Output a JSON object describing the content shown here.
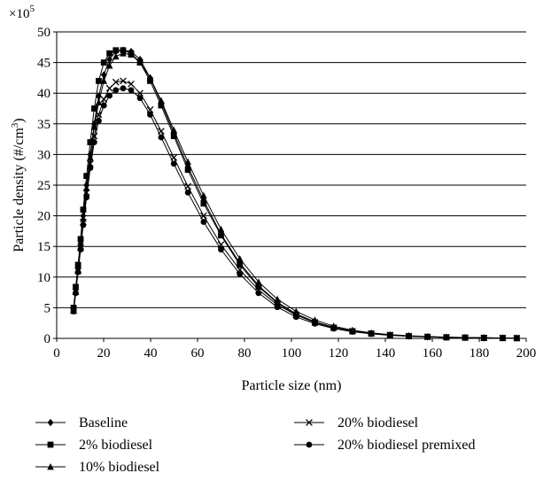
{
  "chart_data": {
    "type": "line",
    "title": "",
    "xlabel": "Particle size (nm)",
    "ylabel_main": "Particle density (#/cm",
    "ylabel_sup": "3",
    "ylabel_close": ")",
    "y_multiplier_base": "×10",
    "y_multiplier_exp": "5",
    "xlim": [
      0,
      200
    ],
    "ylim": [
      0,
      50
    ],
    "x_ticks": [
      0,
      20,
      40,
      60,
      80,
      100,
      120,
      140,
      160,
      180,
      200
    ],
    "y_ticks": [
      0,
      5,
      10,
      15,
      20,
      25,
      30,
      35,
      40,
      45,
      50
    ],
    "grid": "horizontal",
    "legend_position": "bottom",
    "x": [
      7.2,
      8.1,
      9.1,
      10.2,
      11.3,
      12.7,
      14.3,
      16.0,
      17.9,
      20.1,
      22.5,
      25.2,
      28.3,
      31.7,
      35.5,
      39.8,
      44.5,
      49.9,
      55.9,
      62.6,
      70.0,
      78.0,
      86.0,
      94.0,
      102.0,
      110.0,
      118.0,
      126.0,
      134.0,
      142.0,
      150.0,
      158.0,
      166.0,
      174.0,
      182.0,
      190.0,
      196.0
    ],
    "series": [
      {
        "name": "Baseline",
        "marker": "diamond",
        "values": [
          4.8,
          8.0,
          11.5,
          15.5,
          20.0,
          25.0,
          30.0,
          35.0,
          39.5,
          43.0,
          45.5,
          46.8,
          47.0,
          46.8,
          45.5,
          42.5,
          38.5,
          33.5,
          28.0,
          22.5,
          17.0,
          12.3,
          8.6,
          5.9,
          4.0,
          2.7,
          1.8,
          1.2,
          0.8,
          0.55,
          0.38,
          0.26,
          0.18,
          0.13,
          0.09,
          0.06,
          0.04
        ]
      },
      {
        "name": "2% biodiesel",
        "marker": "square",
        "values": [
          5.0,
          8.4,
          12.0,
          16.2,
          21.0,
          26.5,
          32.0,
          37.5,
          42.0,
          45.0,
          46.5,
          47.0,
          47.0,
          46.5,
          45.0,
          42.0,
          38.0,
          33.0,
          27.5,
          22.0,
          16.8,
          12.0,
          8.4,
          5.8,
          3.9,
          2.6,
          1.75,
          1.15,
          0.78,
          0.53,
          0.36,
          0.25,
          0.17,
          0.12,
          0.08,
          0.06,
          0.04
        ]
      },
      {
        "name": "10% biodiesel",
        "marker": "triangle",
        "values": [
          4.6,
          7.8,
          11.2,
          15.0,
          19.5,
          24.5,
          29.5,
          34.5,
          38.5,
          42.0,
          44.5,
          46.0,
          46.5,
          46.3,
          45.0,
          42.5,
          38.8,
          34.0,
          28.8,
          23.3,
          17.8,
          13.0,
          9.2,
          6.4,
          4.4,
          3.0,
          2.0,
          1.35,
          0.9,
          0.62,
          0.43,
          0.3,
          0.2,
          0.14,
          0.1,
          0.07,
          0.05
        ]
      },
      {
        "name": "20% biodiesel",
        "marker": "x",
        "values": [
          4.5,
          7.6,
          11.0,
          14.8,
          19.0,
          23.8,
          28.5,
          33.0,
          36.5,
          39.0,
          40.8,
          41.8,
          42.0,
          41.5,
          40.0,
          37.3,
          33.8,
          29.5,
          24.8,
          20.0,
          15.3,
          11.2,
          7.9,
          5.5,
          3.8,
          2.6,
          1.75,
          1.18,
          0.8,
          0.54,
          0.37,
          0.26,
          0.18,
          0.12,
          0.09,
          0.06,
          0.04
        ]
      },
      {
        "name": "20% biodiesel premixed",
        "marker": "circle",
        "values": [
          4.4,
          7.4,
          10.8,
          14.5,
          18.5,
          23.0,
          27.8,
          32.0,
          35.5,
          38.0,
          39.6,
          40.5,
          40.8,
          40.5,
          39.2,
          36.5,
          32.8,
          28.5,
          23.8,
          19.0,
          14.5,
          10.5,
          7.4,
          5.1,
          3.5,
          2.4,
          1.6,
          1.08,
          0.73,
          0.5,
          0.34,
          0.24,
          0.16,
          0.11,
          0.08,
          0.06,
          0.04
        ]
      }
    ]
  }
}
